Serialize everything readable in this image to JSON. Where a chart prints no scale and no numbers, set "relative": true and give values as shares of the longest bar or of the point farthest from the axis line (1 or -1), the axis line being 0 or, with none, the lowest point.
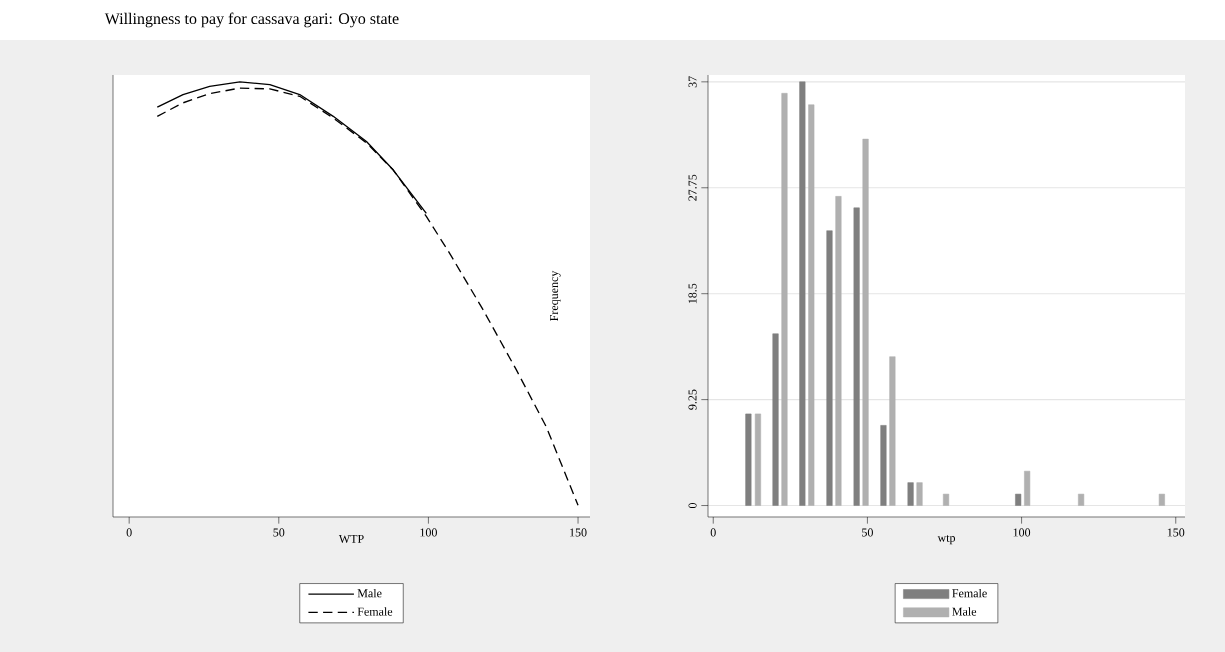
{
  "chart_data": [
    {
      "type": "line",
      "title": "Willingness to pay for cassava gari:  Oyo state",
      "xlabel": "WTP",
      "relative": true,
      "xlim": [
        -5.4,
        154
      ],
      "xticks": [
        0,
        50,
        100,
        150
      ],
      "tick_labels": "x",
      "legend": "bottom",
      "series": [
        {
          "name": "Male",
          "color": "#000000",
          "line_style": "solid",
          "x": [
            9.4,
            18.0,
            26.9,
            37.0,
            47.0,
            57.0,
            68.2,
            79.3,
            88.2,
            99.3
          ],
          "values": [
            0.942,
            0.971,
            0.99,
            1.0,
            0.994,
            0.971,
            0.921,
            0.863,
            0.798,
            0.698
          ]
        },
        {
          "name": "Female",
          "color": "#000000",
          "line_style": "dashed",
          "x": [
            9.4,
            18.0,
            26.9,
            37.0,
            47.0,
            57.0,
            68.2,
            79.3,
            88.2,
            99.3,
            107.1,
            118.3,
            129.4,
            139.4,
            150.0
          ],
          "values": [
            0.921,
            0.952,
            0.973,
            0.986,
            0.984,
            0.967,
            0.917,
            0.86,
            0.798,
            0.691,
            0.606,
            0.476,
            0.338,
            0.207,
            0.027
          ]
        }
      ]
    },
    {
      "type": "bar",
      "xlabel": "wtp",
      "ylabel": "Frequency",
      "xlim": [
        -1.7,
        153
      ],
      "ylim": [
        -1,
        37.6
      ],
      "xticks": [
        0,
        50,
        100,
        150
      ],
      "yticks": [
        0,
        9.25,
        18.5,
        27.75,
        37
      ],
      "grid": "y",
      "legend": "bottom",
      "series": [
        {
          "name": "Female",
          "color": "#7f7f7f",
          "x": [
            11.4,
            20.2,
            28.9,
            37.7,
            46.5,
            55.2,
            64.0,
            98.9
          ],
          "values": [
            8,
            15,
            37,
            24,
            26,
            7,
            2,
            1
          ]
        },
        {
          "name": "Male",
          "color": "#b0b0b0",
          "x": [
            14.5,
            23.1,
            31.8,
            40.6,
            49.4,
            58.1,
            66.9,
            75.5,
            101.8,
            119.3,
            145.5
          ],
          "values": [
            8,
            36,
            35,
            27,
            32,
            13,
            2,
            1,
            3,
            1,
            1
          ]
        }
      ]
    }
  ]
}
